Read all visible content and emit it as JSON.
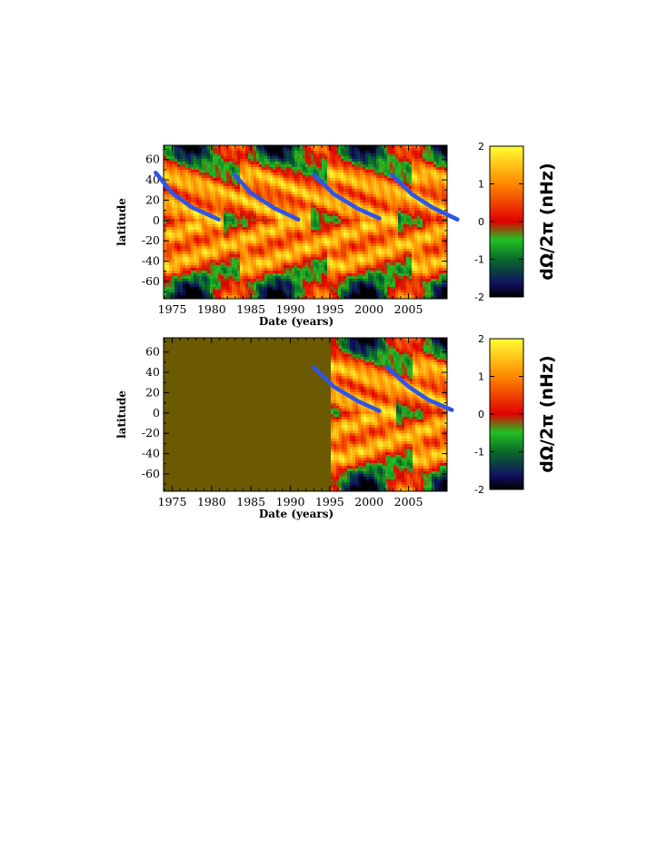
{
  "chart_data": [
    {
      "type": "heatmap",
      "panel": "top",
      "xlabel": "Date (years)",
      "ylabel": "latitude",
      "xlim": [
        1973.9,
        2009.9
      ],
      "ylim": [
        -77,
        74
      ],
      "xticks": [
        "1975",
        "1980",
        "1985",
        "1990",
        "1995",
        "2000",
        "2005"
      ],
      "yticks": [
        "60",
        "40",
        "20",
        "0",
        "-20",
        "-40",
        "-60"
      ],
      "colorbar": {
        "label": "dΩ/2π  (nHz)",
        "range": [
          -2,
          2
        ],
        "ticks": [
          "2",
          "1",
          "0",
          "-1",
          "-2"
        ]
      },
      "color_stops": [
        "#000000",
        "#101060",
        "#0a6a2a",
        "#22c022",
        "#e00000",
        "#ff8800",
        "#ffff33"
      ],
      "data_start_year": 1973.9,
      "overlay_color": "#2f55e8",
      "overlays": [
        {
          "name": "",
          "x": [
            1972.9,
            1975,
            1977.5,
            1980.9
          ],
          "y": [
            47,
            27,
            13,
            1
          ]
        },
        {
          "name": "",
          "x": [
            1982.9,
            1985,
            1988,
            1991
          ],
          "y": [
            45,
            27,
            12,
            1
          ]
        },
        {
          "name": "",
          "x": [
            1993,
            1995.5,
            1998.5,
            2001.3
          ],
          "y": [
            45,
            26,
            12,
            2
          ]
        },
        {
          "name": "",
          "x": [
            2002.9,
            2005.4,
            2008,
            2011.2
          ],
          "y": [
            45,
            26,
            13,
            1
          ]
        }
      ]
    },
    {
      "type": "heatmap",
      "panel": "bottom",
      "xlabel": "Date (years)",
      "ylabel": "latitude",
      "xlim": [
        1973.9,
        2009.9
      ],
      "ylim": [
        -77,
        74
      ],
      "xticks": [
        "1975",
        "1980",
        "1985",
        "1990",
        "1995",
        "2000",
        "2005"
      ],
      "yticks": [
        "60",
        "40",
        "20",
        "0",
        "-20",
        "-40",
        "-60"
      ],
      "colorbar": {
        "label": "dΩ/2π  (nHz)",
        "range": [
          -2,
          2
        ],
        "ticks": [
          "2",
          "1",
          "0",
          "-1",
          "-2"
        ]
      },
      "color_stops": [
        "#000000",
        "#101060",
        "#0a6a2a",
        "#22c022",
        "#e00000",
        "#ff8800",
        "#ffff33"
      ],
      "data_start_year": 1995.2,
      "no_data_color": "#6b5a00",
      "overlay_color": "#2f55e8",
      "overlays": [
        {
          "name": "",
          "x": [
            1993,
            1995.5,
            1998.5,
            2001.3
          ],
          "y": [
            45,
            26,
            12,
            2
          ]
        },
        {
          "name": "",
          "x": [
            2002.3,
            2005,
            2007.5,
            2010.5
          ],
          "y": [
            45,
            26,
            13,
            3
          ]
        }
      ]
    }
  ]
}
